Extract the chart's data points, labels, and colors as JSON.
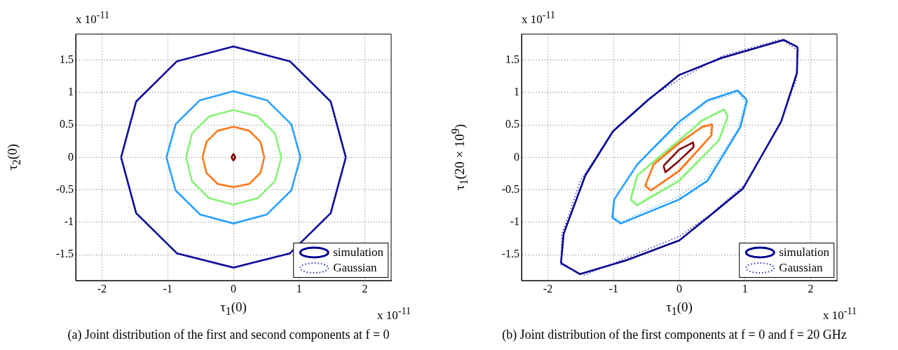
{
  "chart_data": [
    {
      "type": "line",
      "xlabel": "τ$_{1}$(0)",
      "ylabel": "τ$_{2}$(0)",
      "xlim": [
        -2.4,
        2.4
      ],
      "ylim": [
        -1.9,
        1.9
      ],
      "xticks": [
        -2,
        -1,
        0,
        1,
        2
      ],
      "yticks": [
        -1.5,
        -1,
        -0.5,
        0,
        0.5,
        1,
        1.5
      ],
      "grid": true,
      "legend": "bottom right",
      "line_style": "solid",
      "annotations": [
        "x 10$^{-11}$",
        "x 10$^{-11}$",
        "(a) Joint distribution of the first and second components at f = 0"
      ],
      "series": [
        {
          "name": "simulation",
          "color": "#00008f",
          "x": [
            -1.71,
            -1.48,
            -0.86,
            0,
            0.86,
            1.48,
            1.71
          ],
          "values": [
            0,
            0.86,
            1.48,
            1.71,
            1.48,
            0.86,
            0
          ]
        },
        {
          "color": "#00008f",
          "x": [
            -1.71,
            -1.48,
            -0.86,
            0,
            0.86,
            1.48,
            1.71
          ],
          "values": [
            0,
            -0.86,
            -1.48,
            -1.7,
            -1.48,
            -0.86,
            0
          ]
        },
        {
          "color": "#1e9bff",
          "x": [
            -1.02,
            -0.88,
            -0.51,
            0,
            0.51,
            0.88,
            1.02
          ],
          "values": [
            0,
            0.51,
            0.88,
            1.02,
            0.88,
            0.51,
            0
          ]
        },
        {
          "color": "#1e9bff",
          "x": [
            -1.02,
            -0.88,
            -0.51,
            0,
            0.51,
            0.88,
            1.02
          ],
          "values": [
            0,
            -0.51,
            -0.88,
            -1.02,
            -0.88,
            -0.51,
            0
          ]
        },
        {
          "color": "#80f070",
          "x": [
            -0.72,
            -0.63,
            -0.37,
            0,
            0.37,
            0.63,
            0.73
          ],
          "values": [
            0,
            0.37,
            0.63,
            0.73,
            0.63,
            0.37,
            0
          ]
        },
        {
          "color": "#80f070",
          "x": [
            -0.72,
            -0.63,
            -0.37,
            0,
            0.37,
            0.63,
            0.73
          ],
          "values": [
            0,
            -0.37,
            -0.63,
            -0.73,
            -0.63,
            -0.37,
            0
          ]
        },
        {
          "color": "#ff7010",
          "x": [
            -0.47,
            -0.41,
            -0.24,
            0,
            0.24,
            0.41,
            0.47
          ],
          "values": [
            0,
            0.24,
            0.41,
            0.47,
            0.41,
            0.24,
            0
          ]
        },
        {
          "color": "#ff7010",
          "x": [
            -0.47,
            -0.41,
            -0.24,
            0,
            0.24,
            0.41,
            0.47
          ],
          "values": [
            0,
            -0.24,
            -0.41,
            -0.46,
            -0.41,
            -0.24,
            0
          ]
        },
        {
          "color": "#800000",
          "x": [
            -0.03,
            0,
            0.03
          ],
          "values": [
            0,
            0.05,
            0
          ]
        },
        {
          "color": "#800000",
          "x": [
            -0.03,
            0,
            0.03
          ],
          "values": [
            0,
            -0.05,
            0
          ]
        },
        {
          "name": "Gaussian",
          "color": "#3030c0",
          "line_style": "dotted",
          "x": [
            -1.71,
            -1.48,
            -0.86,
            0,
            0.86,
            1.48,
            1.71
          ],
          "values": [
            0,
            0.86,
            1.48,
            1.71,
            1.48,
            0.86,
            0
          ]
        },
        {
          "color": "#3030c0",
          "line_style": "dotted",
          "x": [
            -1.71,
            -1.48,
            -0.86,
            0,
            0.86,
            1.48,
            1.71
          ],
          "values": [
            0,
            -0.86,
            -1.48,
            -1.71,
            -1.48,
            -0.86,
            0
          ]
        },
        {
          "color": "#60b8ff",
          "line_style": "dotted",
          "x": [
            -1.02,
            -0.88,
            -0.51,
            0,
            0.51,
            0.88,
            1.02
          ],
          "values": [
            0,
            0.51,
            0.88,
            1.02,
            0.88,
            0.51,
            0
          ]
        },
        {
          "color": "#60b8ff",
          "line_style": "dotted",
          "x": [
            -1.02,
            -0.88,
            -0.51,
            0,
            0.51,
            0.88,
            1.02
          ],
          "values": [
            0,
            -0.51,
            -0.88,
            -1.02,
            -0.88,
            -0.51,
            0
          ]
        },
        {
          "color": "#a0ff90",
          "line_style": "dotted",
          "x": [
            -0.73,
            -0.63,
            -0.37,
            0,
            0.37,
            0.63,
            0.73
          ],
          "values": [
            0,
            0.37,
            0.63,
            0.73,
            0.63,
            0.37,
            0
          ]
        },
        {
          "color": "#a0ff90",
          "line_style": "dotted",
          "x": [
            -0.73,
            -0.63,
            -0.37,
            0,
            0.37,
            0.63,
            0.73
          ],
          "values": [
            0,
            -0.37,
            -0.63,
            -0.73,
            -0.63,
            -0.37,
            0
          ]
        },
        {
          "color": "#ff9040",
          "line_style": "dotted",
          "x": [
            -0.47,
            -0.41,
            -0.24,
            0,
            0.24,
            0.41,
            0.47
          ],
          "values": [
            0,
            0.24,
            0.41,
            0.47,
            0.41,
            0.24,
            0
          ]
        },
        {
          "color": "#ff9040",
          "line_style": "dotted",
          "x": [
            -0.47,
            -0.41,
            -0.24,
            0,
            0.24,
            0.41,
            0.47
          ],
          "values": [
            0,
            -0.24,
            -0.41,
            -0.47,
            -0.41,
            -0.24,
            0
          ]
        }
      ]
    },
    {
      "type": "line",
      "xlabel": "τ$_{1}$(0)",
      "ylabel": "τ$_{1}$(20 × 10$^{9}$)",
      "xlim": [
        -2.4,
        2.4
      ],
      "ylim": [
        -1.9,
        1.9
      ],
      "xticks": [
        -2,
        -1,
        0,
        1,
        2
      ],
      "yticks": [
        -1.5,
        -1,
        -0.5,
        0,
        0.5,
        1,
        1.5
      ],
      "grid": true,
      "legend": "bottom right",
      "line_style": "solid",
      "annotations": [
        "x 10$^{-11}$",
        "x 10$^{-11}$",
        "(b) Joint distribution of the first components at f = 0 and f = 20 GHz"
      ],
      "series": [
        {
          "name": "simulation",
          "color": "#00008f",
          "x": [
            -1.8,
            -1.76,
            -1.43,
            -1.01,
            -0.48,
            0,
            0.64,
            1.59,
            1.8
          ],
          "values": [
            -1.63,
            -1.18,
            -0.28,
            0.4,
            0.88,
            1.27,
            1.53,
            1.81,
            1.7
          ]
        },
        {
          "color": "#00008f",
          "x": [
            -1.8,
            -1.51,
            -0.81,
            0,
            0.43,
            0.97,
            1.55,
            1.79,
            1.8
          ],
          "values": [
            -1.63,
            -1.8,
            -1.59,
            -1.28,
            -0.93,
            -0.48,
            0.55,
            1.3,
            1.7
          ]
        },
        {
          "color": "#1e9bff",
          "x": [
            -1.02,
            -0.99,
            -0.64,
            0,
            0.43,
            0.89,
            1.03
          ],
          "values": [
            -0.93,
            -0.65,
            -0.11,
            0.55,
            0.88,
            1.03,
            0.88
          ]
        },
        {
          "color": "#1e9bff",
          "x": [
            -1.02,
            -0.89,
            0,
            0.43,
            0.93,
            1.03
          ],
          "values": [
            -0.93,
            -1.02,
            -0.65,
            -0.36,
            0.47,
            0.88
          ]
        },
        {
          "color": "#80f070",
          "x": [
            -0.74,
            -0.64,
            0,
            0.35,
            0.68,
            0.74
          ],
          "values": [
            -0.65,
            -0.28,
            0.26,
            0.57,
            0.74,
            0.63
          ]
        },
        {
          "color": "#80f070",
          "x": [
            -0.74,
            -0.64,
            0,
            0.6,
            0.74
          ],
          "values": [
            -0.65,
            -0.74,
            -0.36,
            0.26,
            0.63
          ]
        },
        {
          "color": "#ff7010",
          "x": [
            -0.52,
            -0.39,
            0,
            0.35,
            0.5
          ],
          "values": [
            -0.44,
            -0.11,
            0.22,
            0.47,
            0.51
          ]
        },
        {
          "color": "#ff7010",
          "x": [
            -0.52,
            -0.43,
            0,
            0.49,
            0.5
          ],
          "values": [
            -0.44,
            -0.51,
            -0.21,
            0.34,
            0.51
          ]
        },
        {
          "color": "#800000",
          "x": [
            -0.24,
            0,
            0.21,
            0.22
          ],
          "values": [
            -0.13,
            0.12,
            0.23,
            0.16
          ]
        },
        {
          "color": "#800000",
          "x": [
            -0.24,
            -0.21,
            0,
            0.22
          ],
          "values": [
            -0.13,
            -0.23,
            -0.05,
            0.16
          ]
        },
        {
          "name": "Gaussian",
          "color": "#3030c0",
          "line_style": "dotted",
          "x": [
            -1.8,
            -1.79,
            -1.5,
            -1.0,
            -0.45,
            0,
            0.65,
            1.55,
            1.8
          ],
          "values": [
            -1.65,
            -1.2,
            -0.35,
            0.42,
            0.92,
            1.2,
            1.56,
            1.82,
            1.65
          ]
        },
        {
          "color": "#3030c0",
          "line_style": "dotted",
          "x": [
            -1.8,
            -1.45,
            -0.8,
            0,
            0.45,
            1.0,
            1.55,
            1.78,
            1.8
          ],
          "values": [
            -1.65,
            -1.82,
            -1.55,
            -1.22,
            -0.9,
            -0.42,
            0.55,
            1.2,
            1.65
          ]
        },
        {
          "color": "#60b8ff",
          "line_style": "dotted",
          "x": [
            -1.0,
            -0.98,
            -0.62,
            0,
            0.42,
            0.9,
            1.0
          ],
          "values": [
            -0.9,
            -0.62,
            -0.08,
            0.5,
            0.85,
            1.0,
            0.85
          ]
        },
        {
          "color": "#60b8ff",
          "line_style": "dotted",
          "x": [
            -1.0,
            -0.9,
            0,
            0.42,
            0.9,
            1.0
          ],
          "values": [
            -0.9,
            -1.0,
            -0.6,
            -0.3,
            0.45,
            0.85
          ]
        },
        {
          "color": "#a0ff90",
          "line_style": "dotted",
          "x": [
            -0.72,
            -0.62,
            0,
            0.35,
            0.7,
            0.72
          ],
          "values": [
            -0.62,
            -0.25,
            0.3,
            0.55,
            0.72,
            0.6
          ]
        },
        {
          "color": "#a0ff90",
          "line_style": "dotted",
          "x": [
            -0.72,
            -0.62,
            0,
            0.58,
            0.72
          ],
          "values": [
            -0.62,
            -0.7,
            -0.32,
            0.24,
            0.6
          ]
        },
        {
          "color": "#ff9040",
          "line_style": "dotted",
          "x": [
            -0.5,
            -0.38,
            0,
            0.33,
            0.48
          ],
          "values": [
            -0.42,
            -0.08,
            0.25,
            0.45,
            0.48
          ]
        },
        {
          "color": "#ff9040",
          "line_style": "dotted",
          "x": [
            -0.5,
            -0.4,
            0,
            0.47,
            0.48
          ],
          "values": [
            -0.42,
            -0.48,
            -0.18,
            0.32,
            0.48
          ]
        }
      ]
    }
  ]
}
